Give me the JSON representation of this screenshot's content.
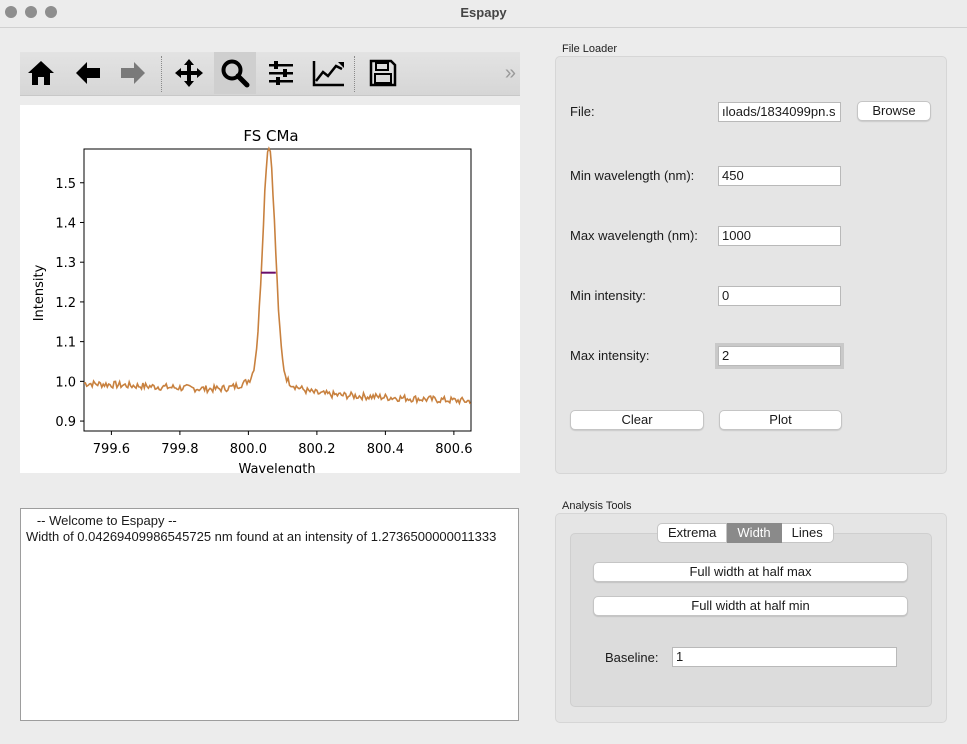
{
  "window": {
    "title": "Espapy"
  },
  "toolbar": {
    "icons": [
      "home-icon",
      "back-arrow-icon",
      "forward-arrow-icon",
      "pan-icon",
      "zoom-icon",
      "configure-subplots-icon",
      "edit-axis-icon",
      "save-icon"
    ],
    "more": "»"
  },
  "chart_data": {
    "type": "line",
    "title": "FS CMa",
    "xlabel": "Wavelength",
    "ylabel": "Intensity",
    "xlim": [
      799.52,
      800.65
    ],
    "ylim": [
      0.875,
      1.585
    ],
    "xticks": [
      "799.6",
      "799.8",
      "800.0",
      "800.2",
      "800.4",
      "800.6"
    ],
    "yticks": [
      "0.9",
      "1.0",
      "1.1",
      "1.2",
      "1.3",
      "1.4",
      "1.5"
    ],
    "series": [
      {
        "color": "#c8813f"
      }
    ],
    "fwhm_marker": {
      "x_start": 800.037,
      "x_end": 800.08,
      "y": 1.2736,
      "color": "#6a0d6a"
    },
    "grid": false
  },
  "console": {
    "lines": [
      "   -- Welcome to Espapy --",
      "Width of 0.04269409986545725 nm found at an intensity of 1.2736500000011333"
    ]
  },
  "file_loader": {
    "title": "File Loader",
    "file_label": "File:",
    "file_value": "ıloads/1834099pn.s",
    "browse_label": "Browse",
    "min_wl_label": "Min wavelength (nm):",
    "min_wl_value": "450",
    "max_wl_label": "Max wavelength (nm):",
    "max_wl_value": "1000",
    "min_int_label": "Min intensity:",
    "min_int_value": "0",
    "max_int_label": "Max intensity:",
    "max_int_value": "2",
    "clear_label": "Clear",
    "plot_label": "Plot"
  },
  "analysis": {
    "title": "Analysis Tools",
    "tabs": [
      "Extrema",
      "Width",
      "Lines"
    ],
    "selected_tab": "Width",
    "fwhm_max_label": "Full width at half max",
    "fwhm_min_label": "Full width at half min",
    "baseline_label": "Baseline:",
    "baseline_value": "1"
  }
}
